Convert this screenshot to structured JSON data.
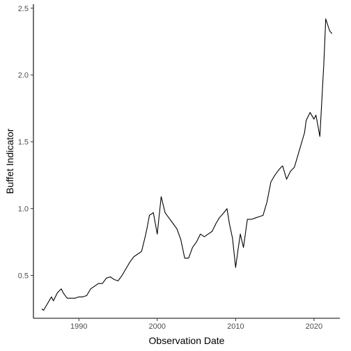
{
  "chart_data": {
    "type": "line",
    "title": "",
    "xlabel": "Observation Date",
    "ylabel": "Buffet Indicator",
    "grid": false,
    "legend": "none",
    "xlim": [
      1984.2,
      2023.3
    ],
    "ylim": [
      0.18,
      2.53
    ],
    "x_ticks": [
      1990,
      2000,
      2010,
      2020
    ],
    "x_tick_labels": [
      "1990",
      "2000",
      "2010",
      "2020"
    ],
    "y_ticks": [
      0.5,
      1.0,
      1.5,
      2.0,
      2.5
    ],
    "y_tick_labels": [
      "0.5",
      "1.0",
      "1.5",
      "2.0",
      "2.5"
    ],
    "line_color": "#000000",
    "series": [
      {
        "x": [
          1985.25,
          1985.5,
          1986.0,
          1986.5,
          1986.75,
          1987.25,
          1987.75,
          1988.0,
          1988.5,
          1989.0,
          1989.5,
          1990.0,
          1990.5,
          1991.0,
          1991.5,
          1992.0,
          1992.5,
          1993.0,
          1993.5,
          1994.0,
          1994.5,
          1995.0,
          1995.5,
          1996.0,
          1996.5,
          1997.0,
          1997.5,
          1998.0,
          1998.5,
          1998.75,
          1999.0,
          1999.5,
          2000.0,
          2000.5,
          2001.0,
          2001.5,
          2002.0,
          2002.5,
          2002.75,
          2003.0,
          2003.5,
          2004.0,
          2004.5,
          2005.0,
          2005.5,
          2006.0,
          2006.5,
          2007.0,
          2007.5,
          2007.9,
          2008.5,
          2008.9,
          2009.2,
          2009.6,
          2010.0,
          2010.3,
          2010.6,
          2011.0,
          2011.5,
          2012.0,
          2012.5,
          2013.0,
          2013.5,
          2014.0,
          2014.5,
          2015.0,
          2015.5,
          2015.8,
          2016.0,
          2016.5,
          2017.0,
          2017.5,
          2018.0,
          2018.5,
          2018.8,
          2019.0,
          2019.5,
          2020.0,
          2020.25,
          2020.75,
          2021.25,
          2021.5,
          2022.0,
          2022.3
        ],
        "y": [
          0.25,
          0.24,
          0.29,
          0.34,
          0.31,
          0.37,
          0.4,
          0.37,
          0.33,
          0.33,
          0.33,
          0.34,
          0.34,
          0.35,
          0.4,
          0.42,
          0.44,
          0.44,
          0.48,
          0.49,
          0.47,
          0.46,
          0.5,
          0.55,
          0.6,
          0.64,
          0.66,
          0.68,
          0.8,
          0.87,
          0.95,
          0.97,
          0.81,
          1.09,
          0.97,
          0.93,
          0.89,
          0.85,
          0.81,
          0.77,
          0.63,
          0.63,
          0.71,
          0.75,
          0.81,
          0.79,
          0.81,
          0.83,
          0.89,
          0.93,
          0.97,
          1.0,
          0.89,
          0.78,
          0.56,
          0.69,
          0.81,
          0.71,
          0.92,
          0.92,
          0.93,
          0.94,
          0.95,
          1.05,
          1.2,
          1.25,
          1.29,
          1.31,
          1.32,
          1.22,
          1.28,
          1.31,
          1.41,
          1.51,
          1.57,
          1.66,
          1.72,
          1.67,
          1.7,
          1.54,
          2.08,
          2.42,
          2.33,
          2.31
        ]
      }
    ]
  }
}
